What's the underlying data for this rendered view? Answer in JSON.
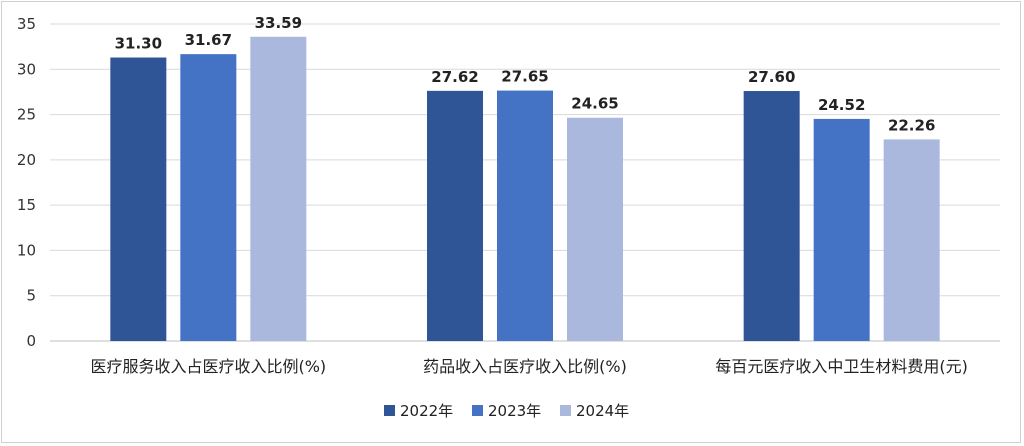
{
  "chart_data": {
    "type": "bar",
    "categories": [
      "医疗服务收入占医疗收入比例(%)",
      "药品收入占医疗收入比例(%)",
      "每百元医疗收入中卫生材料费用(元)"
    ],
    "series": [
      {
        "name": "2022年",
        "values": [
          31.3,
          27.62,
          27.6
        ],
        "labels": [
          "31.30",
          "27.62",
          "27.60"
        ],
        "color": "#2f5597"
      },
      {
        "name": "2023年",
        "values": [
          31.67,
          27.65,
          24.52
        ],
        "labels": [
          "31.67",
          "27.65",
          "24.52"
        ],
        "color": "#4472c4"
      },
      {
        "name": "2024年",
        "values": [
          33.59,
          24.65,
          22.26
        ],
        "labels": [
          "33.59",
          "24.65",
          "22.26"
        ],
        "color": "#a9b8dc"
      }
    ],
    "yticks": [
      "0",
      "5",
      "10",
      "15",
      "20",
      "25",
      "30",
      "35"
    ],
    "ylim": [
      0,
      35
    ],
    "grid": true,
    "legend": "bottom"
  }
}
